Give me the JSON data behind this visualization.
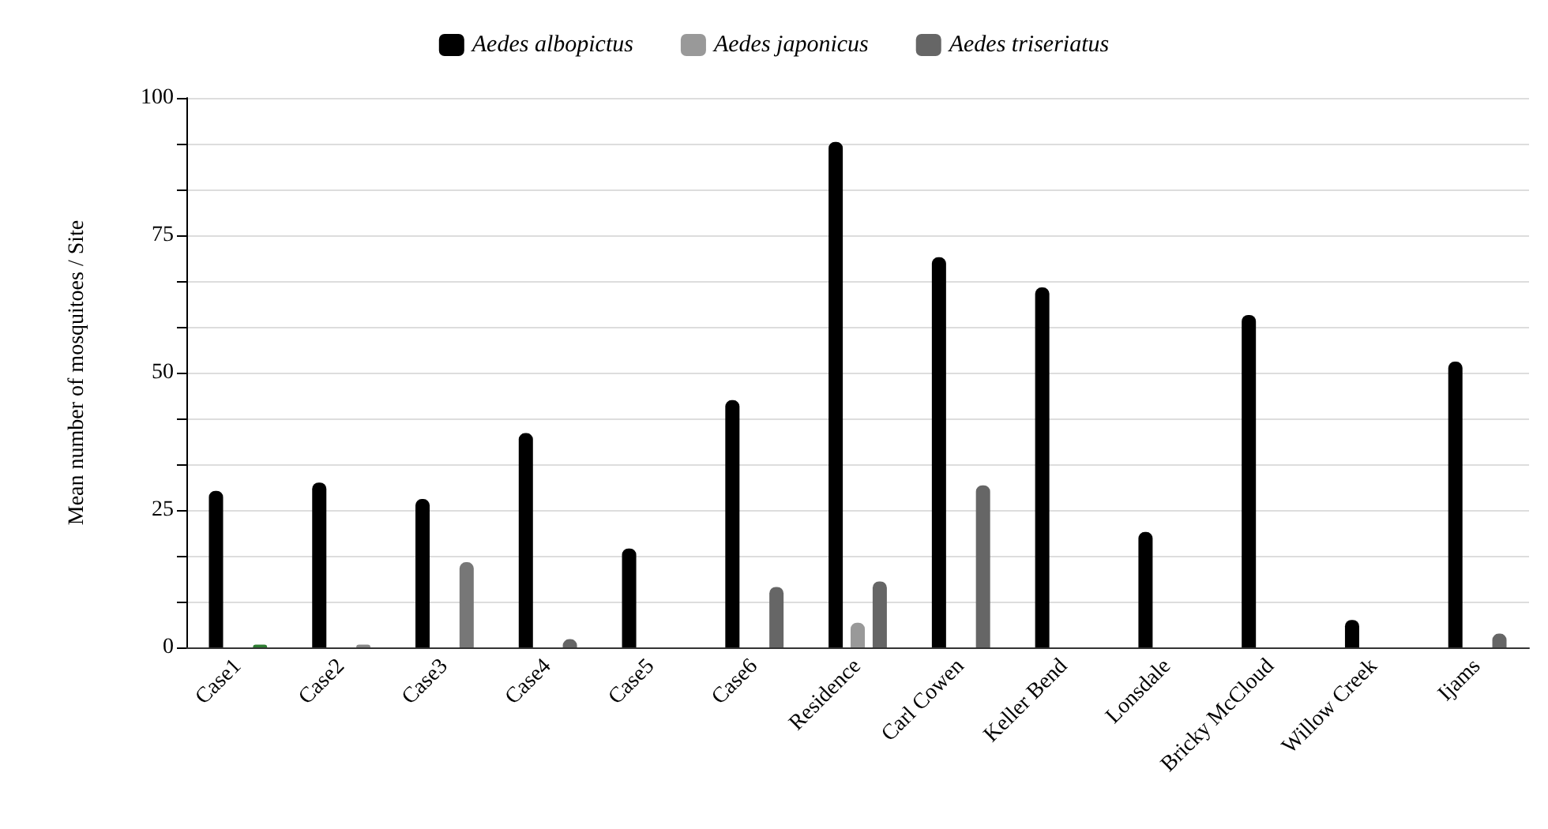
{
  "chart_data": {
    "type": "bar",
    "ylabel": "Mean number of mosquitoes / Site",
    "categories": [
      "Case1",
      "Case2",
      "Case3",
      "Case4",
      "Case5",
      "Case6",
      "Residence",
      "Carl Cowen",
      "Keller Bend",
      "Lonsdale",
      "Bricky McCloud",
      "Willow Creek",
      "Ijams"
    ],
    "series": [
      {
        "name": "Aedes albopictus",
        "color": "#000000",
        "values": [
          28.5,
          30,
          27,
          39,
          18,
          45,
          92,
          71,
          65.5,
          21,
          60.5,
          5,
          52
        ]
      },
      {
        "name": "Aedes japonicus",
        "color": "#999999",
        "values": [
          null,
          null,
          null,
          null,
          null,
          null,
          4.5,
          null,
          null,
          null,
          null,
          null,
          null
        ]
      },
      {
        "name": "Aedes triseriatus",
        "color": "#666666",
        "colors": [
          "#2e7d32",
          "#888888",
          "#777777",
          "#666666",
          null,
          "#666666",
          "#666666",
          "#666666",
          null,
          null,
          null,
          null,
          "#666666"
        ],
        "values": [
          0.5,
          0.5,
          15.5,
          1.5,
          null,
          11,
          12,
          29.5,
          null,
          null,
          null,
          null,
          2.5
        ]
      }
    ],
    "ylim": [
      0,
      100
    ],
    "yticks": [
      0,
      {
        "value": 8.33,
        "label": null
      },
      {
        "value": 16.67,
        "label": null
      },
      25,
      {
        "value": 33.33,
        "label": null
      },
      {
        "value": 41.67,
        "label": null
      },
      50,
      {
        "value": 58.33,
        "label": null
      },
      {
        "value": 66.67,
        "label": null
      },
      75,
      {
        "value": 83.33,
        "label": null
      },
      {
        "value": 91.67,
        "label": null
      },
      100
    ],
    "grid": "y",
    "legend": "top"
  }
}
